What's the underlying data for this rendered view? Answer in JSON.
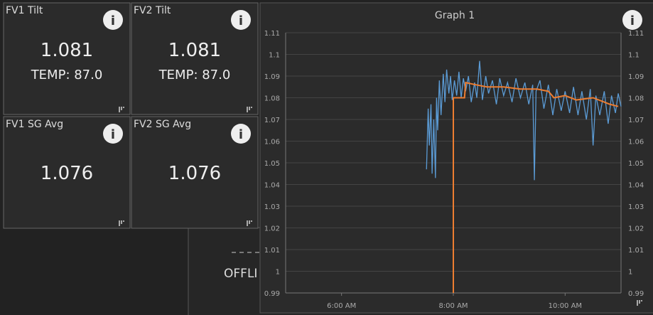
{
  "tiles": [
    {
      "title": "FV1 Tilt",
      "value": "1.081",
      "detail": "TEMP: 87.0"
    },
    {
      "title": "FV2 Tilt",
      "value": "1.081",
      "detail": "TEMP: 87.0"
    },
    {
      "title": "FV1 SG Avg",
      "value": "1.076"
    },
    {
      "title": "FV2 SG Avg",
      "value": "1.076"
    }
  ],
  "background": {
    "status": "OFFLI"
  },
  "chart_data": {
    "type": "line",
    "title": "Graph 1",
    "xlim": [
      5,
      11
    ],
    "xticks": [
      {
        "value": 6,
        "label": "6:00 AM"
      },
      {
        "value": 8,
        "label": "8:00 AM"
      },
      {
        "value": 10,
        "label": "10:00 AM"
      }
    ],
    "ylim": [
      0.99,
      1.11
    ],
    "yticks": [
      0.99,
      1,
      1.01,
      1.02,
      1.03,
      1.04,
      1.05,
      1.06,
      1.07,
      1.08,
      1.09,
      1.1,
      1.11
    ],
    "grid": true,
    "series": [
      {
        "color": "#5b9bd5",
        "x": [
          7.52,
          7.55,
          7.57,
          7.6,
          7.62,
          7.65,
          7.68,
          7.7,
          7.72,
          7.75,
          7.78,
          7.82,
          7.85,
          7.88,
          7.92,
          7.95,
          7.98,
          8.02,
          8.06,
          8.1,
          8.14,
          8.18,
          8.22,
          8.27,
          8.32,
          8.38,
          8.42,
          8.47,
          8.52,
          8.58,
          8.63,
          8.7,
          8.77,
          8.83,
          8.9,
          8.97,
          9.05,
          9.12,
          9.2,
          9.28,
          9.35,
          9.42,
          9.45,
          9.48,
          9.55,
          9.62,
          9.7,
          9.78,
          9.85,
          9.93,
          10,
          10.08,
          10.15,
          10.23,
          10.3,
          10.38,
          10.45,
          10.5,
          10.55,
          10.62,
          10.7,
          10.77,
          10.83,
          10.9,
          10.95,
          11
        ],
        "values": [
          1.047,
          1.075,
          1.058,
          1.077,
          1.045,
          1.07,
          1.043,
          1.08,
          1.065,
          1.088,
          1.072,
          1.091,
          1.078,
          1.093,
          1.082,
          1.09,
          1.079,
          1.088,
          1.081,
          1.092,
          1.08,
          1.089,
          1.083,
          1.09,
          1.078,
          1.087,
          1.08,
          1.097,
          1.079,
          1.09,
          1.082,
          1.088,
          1.077,
          1.089,
          1.081,
          1.087,
          1.078,
          1.089,
          1.08,
          1.087,
          1.077,
          1.086,
          1.042,
          1.083,
          1.088,
          1.075,
          1.086,
          1.072,
          1.084,
          1.074,
          1.083,
          1.073,
          1.085,
          1.072,
          1.083,
          1.07,
          1.084,
          1.058,
          1.081,
          1.072,
          1.083,
          1.068,
          1.081,
          1.073,
          1.082,
          1.076
        ]
      },
      {
        "color": "#ed7d31",
        "x": [
          8,
          8,
          8.2,
          8.22,
          8.4,
          8.6,
          8.9,
          9.2,
          9.5,
          9.7,
          9.8,
          10,
          10.2,
          10.5,
          10.7,
          10.8,
          10.95
        ],
        "values": [
          0.99,
          1.08,
          1.08,
          1.087,
          1.086,
          1.085,
          1.085,
          1.084,
          1.084,
          1.083,
          1.08,
          1.081,
          1.079,
          1.08,
          1.078,
          1.077,
          1.076
        ]
      }
    ]
  }
}
